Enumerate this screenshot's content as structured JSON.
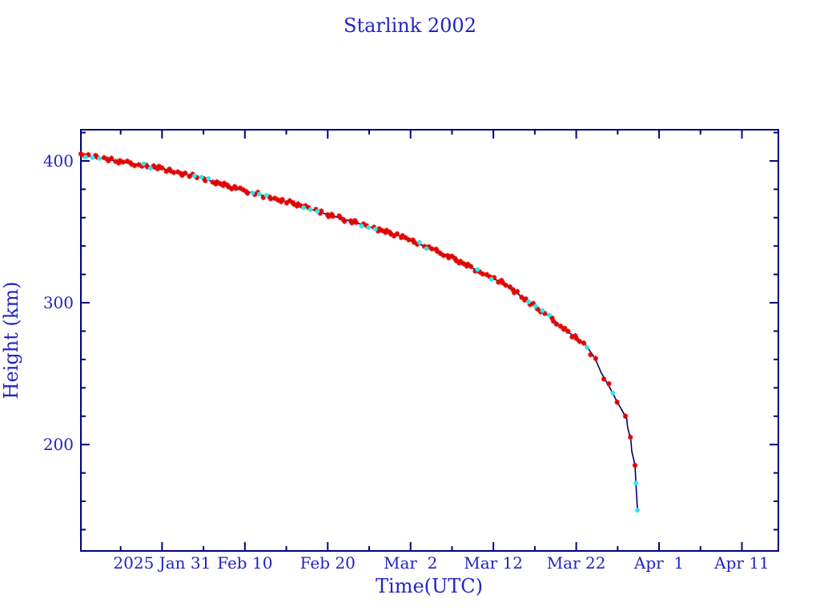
{
  "page": {
    "background": "#ffffff"
  },
  "chart_data": {
    "type": "line",
    "title": "Starlink 2002",
    "xlabel": "Time(UTC)",
    "ylabel": "Height (km)",
    "x_axis": {
      "major_ticks": [
        {
          "t": 0,
          "label": "2025 Jan 31"
        },
        {
          "t": 10,
          "label": "Feb 10"
        },
        {
          "t": 20,
          "label": "Feb 20"
        },
        {
          "t": 30,
          "label": "Mar  2"
        },
        {
          "t": 40,
          "label": "Mar 12"
        },
        {
          "t": 50,
          "label": "Mar 22"
        },
        {
          "t": 60,
          "label": "Apr  1"
        },
        {
          "t": 70,
          "label": "Apr 11"
        }
      ],
      "minor_step_days": 5,
      "range_days": [
        -9.8,
        74.4
      ],
      "t_reference": "days relative to 2025 Jan 31"
    },
    "y_axis": {
      "major_ticks": [
        200,
        300,
        400
      ],
      "minor_step_km": 20,
      "range_km": [
        125,
        422
      ]
    },
    "series": [
      {
        "name": "orbital-decay-track",
        "line_color": "#000070",
        "points": [
          [
            -9.8,
            404.5
          ],
          [
            -5.0,
            399.4
          ],
          [
            -0.2,
            394.9
          ],
          [
            4.6,
            388.1
          ],
          [
            9.5,
            379.7
          ],
          [
            16.2,
            369.5
          ],
          [
            19.1,
            363.8
          ],
          [
            25.0,
            353.7
          ],
          [
            28.8,
            346.9
          ],
          [
            34.6,
            332.8
          ],
          [
            38.5,
            321.5
          ],
          [
            41.4,
            313.0
          ],
          [
            44.0,
            301.7
          ],
          [
            46.7,
            290.4
          ],
          [
            49.1,
            279.0
          ],
          [
            51.1,
            270.6
          ],
          [
            52.3,
            260.5
          ],
          [
            53.0,
            250.8
          ],
          [
            54.0,
            240.7
          ],
          [
            54.7,
            232.8
          ],
          [
            55.4,
            225.4
          ],
          [
            56.1,
            218.0
          ],
          [
            56.2,
            212.4
          ],
          [
            56.6,
            202.8
          ],
          [
            56.7,
            195.5
          ],
          [
            57.1,
            185.3
          ],
          [
            57.2,
            172.9
          ],
          [
            57.4,
            153.7
          ]
        ]
      }
    ],
    "markers": {
      "red": {
        "symbol": "asterisk",
        "color": "#e00505"
      },
      "cyan": {
        "symbol": "dot",
        "color": "#35e5e5"
      },
      "generation": {
        "segments": [
          {
            "from": -9.8,
            "to": 51.0,
            "step": 0.28
          },
          {
            "from": 51.3,
            "to": 56.8,
            "step": 0.52
          }
        ],
        "gap_mod": 101,
        "gap_lt": 16,
        "cyan_mod": 97,
        "cyan_lt": 13
      },
      "tail_markers": [
        {
          "t": 57.1,
          "color": "red"
        },
        {
          "t": 57.2,
          "color": "cyan"
        },
        {
          "t": 57.4,
          "color": "cyan"
        }
      ]
    },
    "colors": {
      "frame": "#000080",
      "text": "#2323c3"
    }
  }
}
